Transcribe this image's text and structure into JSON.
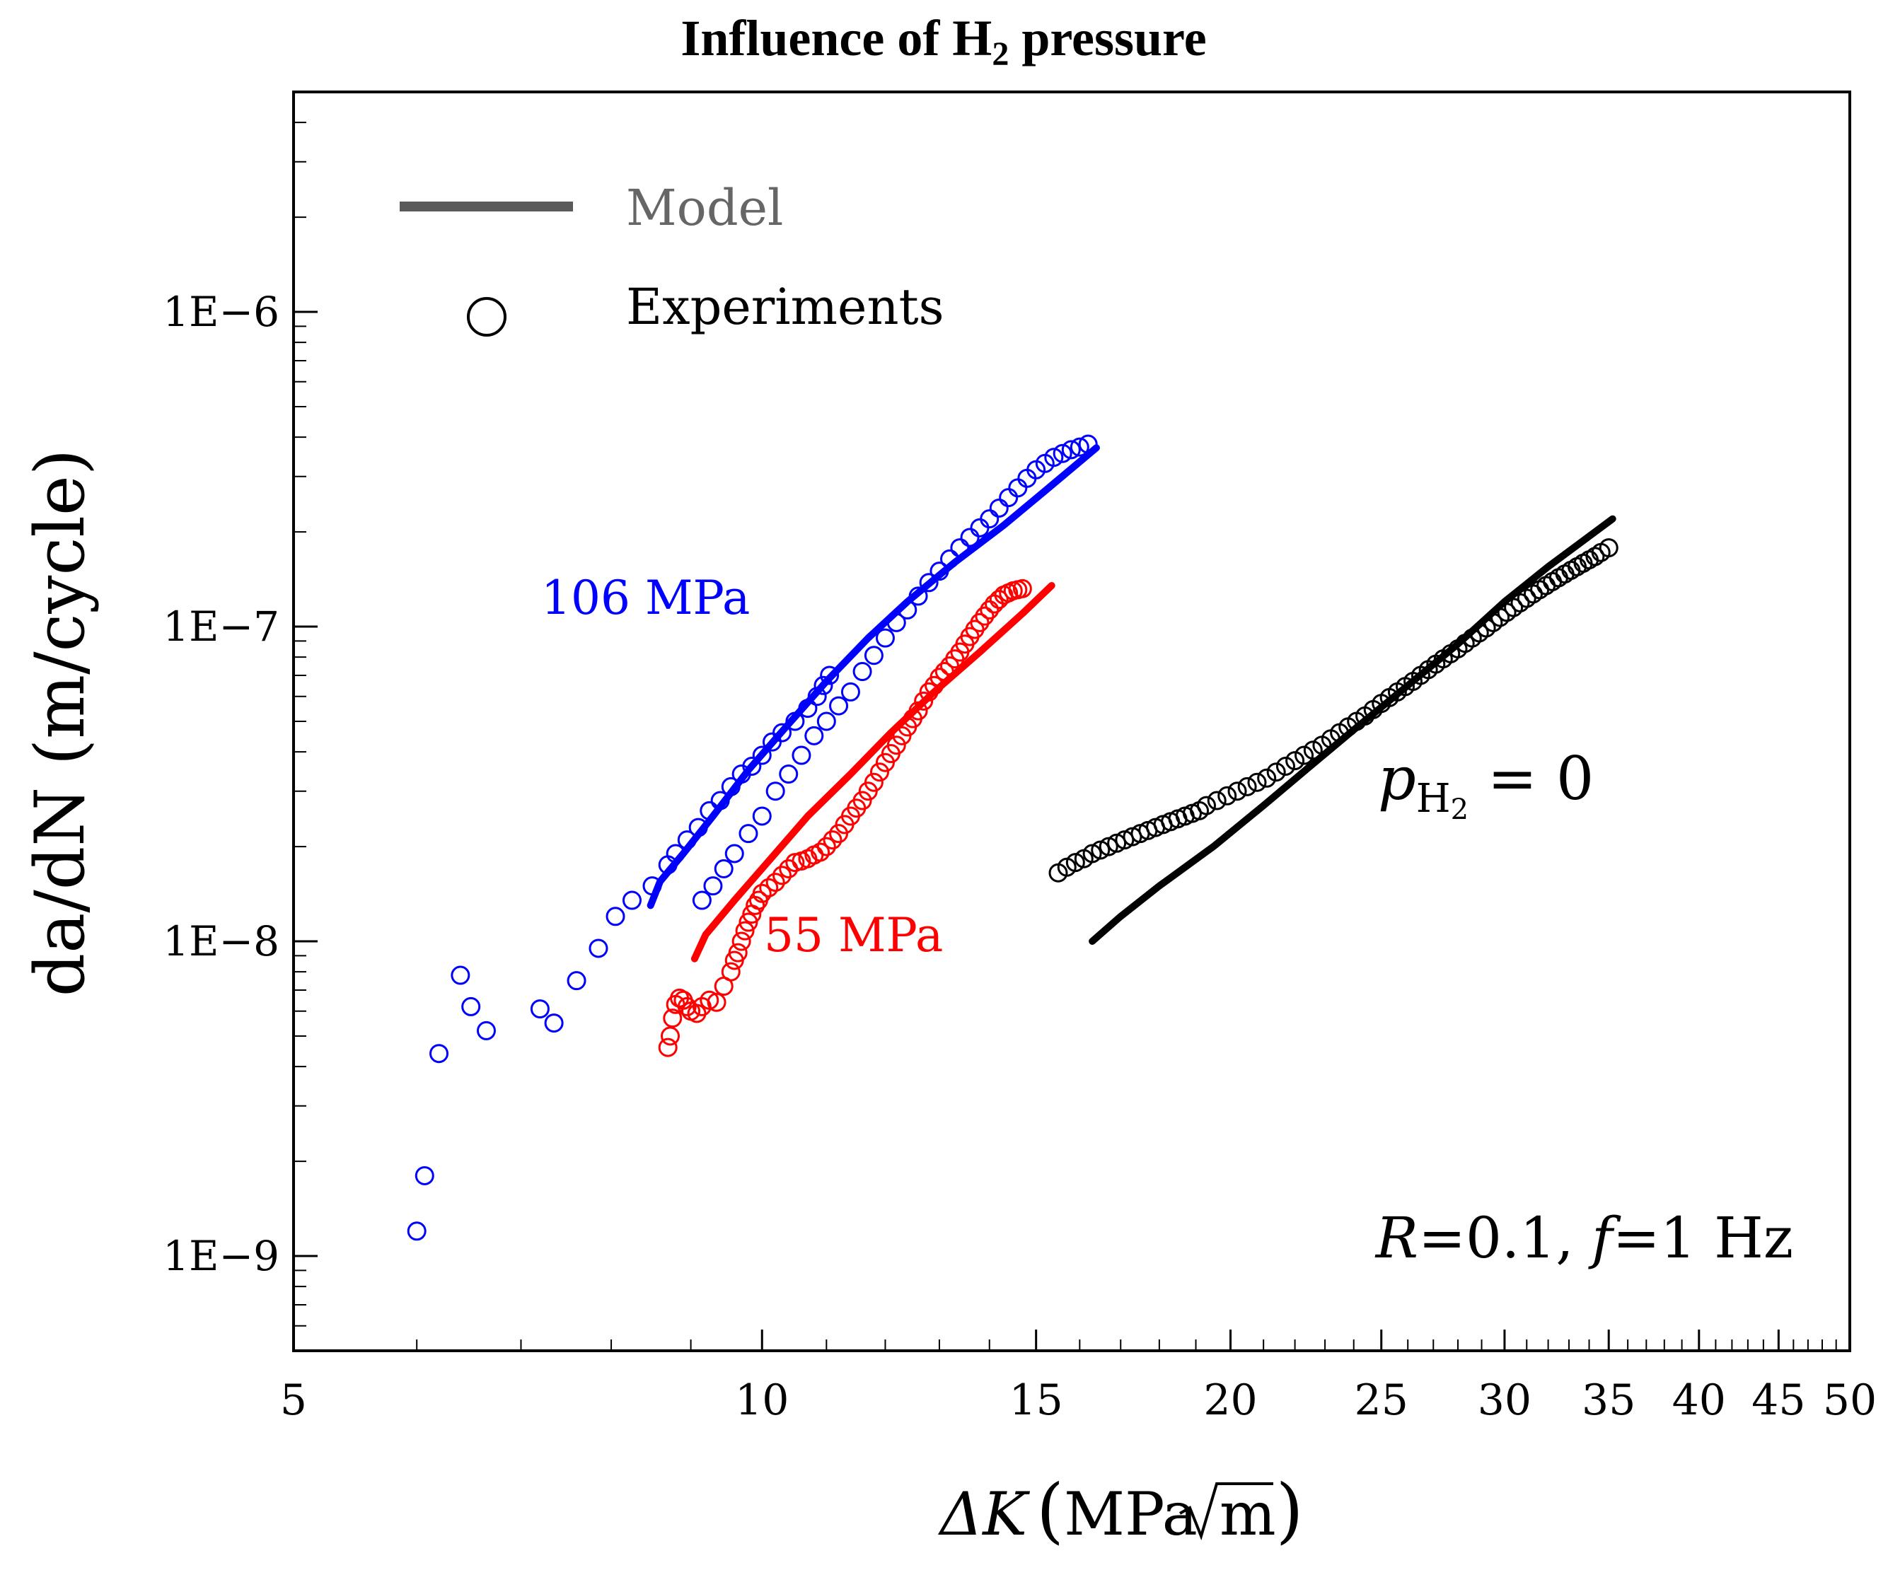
{
  "chart_data": {
    "type": "scatter",
    "title": "Influence of H",
    "title_sub": "2",
    "title_rest": " pressure",
    "xlabel_main": "ΔK",
    "xlabel_unit_a": "MPa",
    "xlabel_unit_b": "m",
    "ylabel_main": "da/dN",
    "ylabel_unit": "(m/cycle)",
    "xscale": "log",
    "yscale": "log",
    "xlim": [
      5,
      50
    ],
    "ylim": [
      5e-10,
      5e-06
    ],
    "xticks": [
      5,
      10,
      15,
      20,
      25,
      30,
      35,
      40,
      45,
      50
    ],
    "xtick_labels": [
      "5",
      "10",
      "15",
      "20",
      "25",
      "30",
      "35",
      "40",
      "45",
      "50"
    ],
    "yticks": [
      1e-09,
      1e-08,
      1e-07,
      1e-06
    ],
    "ytick_labels": [
      "1E−9",
      "1E−8",
      "1E−7",
      "1E−6"
    ],
    "grid": false,
    "legend": {
      "placement": "top-left",
      "entries": [
        {
          "label": "Model",
          "kind": "line",
          "color": "#5a5a5a"
        },
        {
          "label": "Experiments",
          "kind": "circle",
          "color": "#000000"
        }
      ]
    },
    "annotations": {
      "blue_label": "106 MPa",
      "red_label": "55 MPa",
      "black_label_p": "p",
      "black_label_sub": "H",
      "black_label_subsub": "2",
      "black_label_eq": " = 0",
      "conditions_R": "R",
      "conditions_R_val": "=0.1, ",
      "conditions_f": "f",
      "conditions_f_val": "=1 Hz"
    },
    "series": [
      {
        "label_key": "blue_label",
        "color": "#0000ff",
        "model": {
          "x": [
            8.48,
            8.6,
            8.9,
            9.3,
            9.8,
            10.4,
            11.0,
            11.7,
            12.4,
            13.3,
            14.3,
            15.2,
            16.4
          ],
          "y": [
            1.3e-08,
            1.55e-08,
            1.9e-08,
            2.5e-08,
            3.5e-08,
            4.9e-08,
            6.7e-08,
            9.2e-08,
            1.2e-07,
            1.6e-07,
            2.1e-07,
            2.7e-07,
            3.7e-07
          ]
        },
        "experiments": {
          "x": [
            6.0,
            6.07,
            6.2,
            6.4,
            6.5,
            6.65,
            7.2,
            7.35,
            7.6,
            7.85,
            8.05,
            8.25,
            8.5,
            8.7,
            8.8,
            8.95,
            9.1,
            9.25,
            9.4,
            9.55,
            9.7,
            9.85,
            10.0,
            10.15,
            10.3,
            10.5,
            10.7,
            10.85,
            10.95,
            11.05,
            9.15,
            9.3,
            9.45,
            9.6,
            9.8,
            10.0,
            10.2,
            10.4,
            10.6,
            10.8,
            11.0,
            11.2,
            11.4,
            11.6,
            11.8,
            12.0,
            12.2,
            12.4,
            12.6,
            12.8,
            13.0,
            13.2,
            13.4,
            13.6,
            13.8,
            14.0,
            14.2,
            14.4,
            14.6,
            14.8,
            15.0,
            15.2,
            15.4,
            15.6,
            15.8,
            16.0,
            16.2
          ],
          "y": [
            1.2e-09,
            1.8e-09,
            4.4e-09,
            7.8e-09,
            6.2e-09,
            5.2e-09,
            6.1e-09,
            5.5e-09,
            7.5e-09,
            9.5e-09,
            1.2e-08,
            1.35e-08,
            1.5e-08,
            1.75e-08,
            1.9e-08,
            2.1e-08,
            2.3e-08,
            2.6e-08,
            2.8e-08,
            3.1e-08,
            3.4e-08,
            3.6e-08,
            3.9e-08,
            4.3e-08,
            4.6e-08,
            5e-08,
            5.5e-08,
            6e-08,
            6.5e-08,
            7e-08,
            1.35e-08,
            1.5e-08,
            1.7e-08,
            1.9e-08,
            2.2e-08,
            2.5e-08,
            3e-08,
            3.4e-08,
            3.9e-08,
            4.5e-08,
            5e-08,
            5.6e-08,
            6.2e-08,
            7.2e-08,
            8.1e-08,
            9.2e-08,
            1.03e-07,
            1.13e-07,
            1.25e-07,
            1.38e-07,
            1.5e-07,
            1.64e-07,
            1.78e-07,
            1.92e-07,
            2.06e-07,
            2.2e-07,
            2.38e-07,
            2.57e-07,
            2.76e-07,
            2.96e-07,
            3.15e-07,
            3.3e-07,
            3.45e-07,
            3.55e-07,
            3.65e-07,
            3.72e-07,
            3.8e-07
          ]
        }
      },
      {
        "label_key": "red_label",
        "color": "#ff0000",
        "model": {
          "x": [
            9.05,
            9.2,
            9.6,
            10.1,
            10.7,
            11.4,
            12.1,
            12.9,
            13.8,
            14.7,
            15.35
          ],
          "y": [
            8.8e-09,
            1.05e-08,
            1.35e-08,
            1.8e-08,
            2.5e-08,
            3.4e-08,
            4.6e-08,
            6.2e-08,
            8.3e-08,
            1.1e-07,
            1.35e-07
          ]
        },
        "experiments": {
          "x": [
            8.7,
            8.73,
            8.76,
            8.8,
            8.85,
            8.9,
            8.95,
            9.0,
            9.08,
            9.15,
            9.25,
            9.35,
            9.45,
            9.55,
            9.6,
            9.65,
            9.7,
            9.75,
            9.8,
            9.85,
            9.9,
            9.95,
            10.0,
            10.1,
            10.2,
            10.3,
            10.4,
            10.5,
            10.6,
            10.7,
            10.8,
            10.9,
            11.0,
            11.1,
            11.2,
            11.3,
            11.4,
            11.5,
            11.6,
            11.7,
            11.8,
            11.9,
            12.0,
            12.1,
            12.2,
            12.3,
            12.4,
            12.5,
            12.6,
            12.7,
            12.8,
            12.9,
            13.0,
            13.1,
            13.2,
            13.3,
            13.4,
            13.5,
            13.6,
            13.7,
            13.8,
            13.9,
            14.0,
            14.1,
            14.2,
            14.3,
            14.4,
            14.5,
            14.6,
            14.7
          ],
          "y": [
            4.6e-09,
            5e-09,
            5.7e-09,
            6.3e-09,
            6.6e-09,
            6.5e-09,
            6.2e-09,
            6e-09,
            5.9e-09,
            6.2e-09,
            6.5e-09,
            6.4e-09,
            7.2e-09,
            8e-09,
            8.7e-09,
            9.2e-09,
            1e-08,
            1.08e-08,
            1.15e-08,
            1.22e-08,
            1.3e-08,
            1.35e-08,
            1.42e-08,
            1.48e-08,
            1.54e-08,
            1.62e-08,
            1.7e-08,
            1.78e-08,
            1.8e-08,
            1.83e-08,
            1.88e-08,
            1.92e-08,
            2e-08,
            2.1e-08,
            2.2e-08,
            2.35e-08,
            2.5e-08,
            2.65e-08,
            2.8e-08,
            3e-08,
            3.2e-08,
            3.45e-08,
            3.7e-08,
            3.95e-08,
            4.2e-08,
            4.5e-08,
            4.8e-08,
            5.1e-08,
            5.4e-08,
            5.8e-08,
            6.2e-08,
            6.5e-08,
            6.9e-08,
            7.2e-08,
            7.5e-08,
            7.9e-08,
            8.3e-08,
            8.8e-08,
            9.3e-08,
            9.8e-08,
            1.03e-07,
            1.08e-07,
            1.13e-07,
            1.18e-07,
            1.22e-07,
            1.26e-07,
            1.28e-07,
            1.3e-07,
            1.31e-07,
            1.32e-07
          ]
        }
      },
      {
        "label_key": "black_label",
        "color": "#000000",
        "model": {
          "x": [
            16.3,
            17.0,
            18.0,
            19.5,
            21.0,
            22.5,
            24.0,
            26.0,
            28.0,
            30.0,
            32.0,
            35.2
          ],
          "y": [
            1e-08,
            1.2e-08,
            1.5e-08,
            2e-08,
            2.7e-08,
            3.6e-08,
            4.7e-08,
            6.5e-08,
            8.8e-08,
            1.2e-07,
            1.55e-07,
            2.2e-07
          ]
        },
        "experiments": {
          "x": [
            15.5,
            15.7,
            15.9,
            16.1,
            16.3,
            16.5,
            16.7,
            16.9,
            17.1,
            17.3,
            17.5,
            17.7,
            17.9,
            18.1,
            18.3,
            18.5,
            18.7,
            18.9,
            19.1,
            19.3,
            19.6,
            19.9,
            20.2,
            20.5,
            20.8,
            21.1,
            21.4,
            21.7,
            22.0,
            22.3,
            22.6,
            22.9,
            23.2,
            23.5,
            23.8,
            24.1,
            24.4,
            24.7,
            25.0,
            25.3,
            25.6,
            25.9,
            26.2,
            26.5,
            26.8,
            27.1,
            27.4,
            27.7,
            28.0,
            28.3,
            28.6,
            28.9,
            29.2,
            29.5,
            29.8,
            30.1,
            30.4,
            30.7,
            31.0,
            31.3,
            31.6,
            31.9,
            32.2,
            32.5,
            32.8,
            33.1,
            33.4,
            33.7,
            34.0,
            34.3,
            34.6,
            35.0
          ],
          "y": [
            1.65e-08,
            1.72e-08,
            1.78e-08,
            1.83e-08,
            1.9e-08,
            1.95e-08,
            2e-08,
            2.05e-08,
            2.1e-08,
            2.15e-08,
            2.2e-08,
            2.25e-08,
            2.3e-08,
            2.35e-08,
            2.4e-08,
            2.45e-08,
            2.5e-08,
            2.55e-08,
            2.6e-08,
            2.7e-08,
            2.8e-08,
            2.9e-08,
            3e-08,
            3.1e-08,
            3.2e-08,
            3.3e-08,
            3.45e-08,
            3.6e-08,
            3.75e-08,
            3.9e-08,
            4.05e-08,
            4.2e-08,
            4.4e-08,
            4.6e-08,
            4.8e-08,
            5e-08,
            5.2e-08,
            5.45e-08,
            5.7e-08,
            5.95e-08,
            6.2e-08,
            6.45e-08,
            6.7e-08,
            7e-08,
            7.3e-08,
            7.6e-08,
            7.9e-08,
            8.2e-08,
            8.5e-08,
            8.85e-08,
            9.2e-08,
            9.55e-08,
            9.9e-08,
            1.03e-07,
            1.07e-07,
            1.11e-07,
            1.15e-07,
            1.19e-07,
            1.23e-07,
            1.27e-07,
            1.31e-07,
            1.35e-07,
            1.39e-07,
            1.43e-07,
            1.47e-07,
            1.51e-07,
            1.55e-07,
            1.59e-07,
            1.63e-07,
            1.67e-07,
            1.72e-07,
            1.78e-07
          ]
        }
      }
    ]
  }
}
